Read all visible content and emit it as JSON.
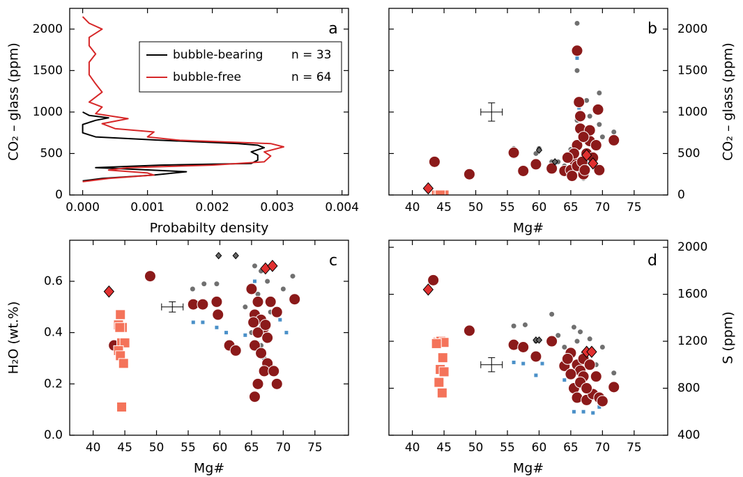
{
  "chart_data": [
    {
      "type": "line",
      "panel_label": "a",
      "xlabel": "Probabilty density",
      "ylabel": "CO₂ – glass (ppm)",
      "yaxis_side": "left",
      "xlim": [
        -0.0002,
        0.0041
      ],
      "xticks": [
        {
          "value": 0,
          "label": "0.000"
        },
        0.001,
        0.002,
        0.003,
        0.004
      ],
      "ylim": [
        0,
        2250
      ],
      "yticks": [
        0,
        500,
        1000,
        1500,
        2000
      ],
      "series": [
        {
          "name": "bubble-bearing",
          "legend_count": "n = 33",
          "color": "#000000",
          "x": [
            0,
            0.0003,
            0.0011,
            0.0016,
            0.0008,
            0.0002,
            0.0012,
            0.0026,
            0.0027,
            0.0027,
            0.0026,
            0.0028,
            0.0027,
            0.0024,
            0.0012,
            0.0002,
            0,
            0,
            0.0002,
            0.0004,
            0.0001,
            0
          ],
          "y": [
            170,
            200,
            240,
            280,
            310,
            330,
            360,
            380,
            420,
            480,
            520,
            570,
            600,
            620,
            660,
            700,
            750,
            850,
            900,
            930,
            960,
            1000
          ]
        },
        {
          "name": "bubble-free",
          "legend_count": "n = 64",
          "color": "#d62728",
          "x": [
            0,
            0.0004,
            0.0011,
            0.001,
            0.0004,
            0.0007,
            0.002,
            0.0028,
            0.0029,
            0.0028,
            0.0031,
            0.0029,
            0.0015,
            0.001,
            0.0011,
            0.0005,
            0.0003,
            0.0007,
            0.0002,
            0.0003,
            0.0001,
            0.0003,
            0.0002,
            0.0001,
            0.0001,
            0.0002,
            0.0001,
            0.0001,
            0.0003,
            0.0001,
            0
          ],
          "y": [
            160,
            200,
            240,
            265,
            300,
            330,
            360,
            400,
            470,
            520,
            580,
            620,
            660,
            700,
            760,
            800,
            860,
            920,
            980,
            1060,
            1120,
            1240,
            1340,
            1450,
            1600,
            1700,
            1800,
            1900,
            2000,
            2070,
            2150
          ]
        }
      ]
    },
    {
      "type": "scatter",
      "panel_label": "b",
      "xlabel": "Mg#",
      "ylabel": "CO₂ – glass (ppm)",
      "yaxis_side": "right",
      "xlim": [
        36.3,
        80.3
      ],
      "xticks": [
        40,
        45,
        50,
        55,
        60,
        65,
        70,
        75
      ],
      "ylim": [
        0,
        2250
      ],
      "yticks": [
        0,
        500,
        1000,
        1500,
        2000
      ],
      "error_bar": {
        "x": 52.5,
        "y": 1000,
        "xerr": 1.7,
        "yerr": 110
      },
      "series": [
        {
          "marker": "dot",
          "color": "#707070",
          "x": [
            66,
            66,
            69.5,
            67.5,
            69.5,
            71.8,
            60,
            56,
            59.5,
            63,
            65,
            66,
            68,
            70,
            64,
            67,
            62
          ],
          "y": [
            2070,
            1500,
            1230,
            1140,
            850,
            760,
            560,
            560,
            500,
            400,
            550,
            900,
            950,
            700,
            350,
            200,
            400
          ]
        },
        {
          "marker": "small-square",
          "color": "#4a90c8",
          "x": [
            66,
            66.3,
            69.2,
            66.7,
            56,
            59.5,
            57.5,
            62.5,
            68,
            65
          ],
          "y": [
            1650,
            1050,
            1000,
            780,
            460,
            340,
            280,
            380,
            400,
            250
          ]
        },
        {
          "marker": "circle",
          "color": "#8b1a1a",
          "x": [
            43.5,
            49,
            56,
            57.5,
            59.5,
            62,
            64,
            65,
            65.5,
            66,
            66.3,
            66.5,
            66,
            65.5,
            66,
            67,
            67.5,
            68,
            68,
            69.3,
            69,
            69.5,
            71.8,
            64.5,
            66.8,
            67.2,
            65.2,
            68.5,
            66.5,
            67
          ],
          "y": [
            400,
            250,
            510,
            290,
            370,
            320,
            290,
            300,
            420,
            1740,
            1120,
            800,
            600,
            500,
            350,
            250,
            500,
            650,
            780,
            1030,
            600,
            300,
            660,
            450,
            400,
            300,
            230,
            450,
            950,
            700
          ]
        },
        {
          "marker": "square",
          "color": "#f4735a",
          "x": [
            43.8,
            44.2,
            44.6,
            45,
            44.4
          ],
          "y": [
            0,
            0,
            0,
            0,
            0
          ]
        },
        {
          "marker": "diamond",
          "color": "#e03030",
          "x": [
            42.5,
            67.5,
            68.5
          ],
          "y": [
            80,
            480,
            380
          ]
        },
        {
          "marker": "small-diamond",
          "color": "#666666",
          "x": [
            60,
            62.5
          ],
          "y": [
            540,
            400
          ]
        }
      ]
    },
    {
      "type": "scatter",
      "panel_label": "c",
      "xlabel": "Mg#",
      "ylabel": "H₂O (wt.%)",
      "yaxis_side": "left",
      "xlim": [
        36.3,
        80.3
      ],
      "xticks": [
        40,
        45,
        50,
        55,
        60,
        65,
        70,
        75
      ],
      "ylim": [
        0,
        0.76
      ],
      "yticks": [
        {
          "value": 0,
          "label": "0.0"
        },
        0.2,
        0.4,
        0.6
      ],
      "error_bar": {
        "x": 52.5,
        "y": 0.5,
        "xerr": 1.7,
        "yerr": 0.02
      },
      "series": [
        {
          "marker": "dot",
          "color": "#707070",
          "x": [
            55.7,
            57.5,
            59.5,
            65.5,
            66.5,
            67.5,
            70,
            71.5,
            64,
            66,
            68,
            65,
            66.5,
            67
          ],
          "y": [
            0.57,
            0.59,
            0.59,
            0.66,
            0.64,
            0.6,
            0.57,
            0.62,
            0.5,
            0.55,
            0.48,
            0.4,
            0.35,
            0.3
          ]
        },
        {
          "marker": "small-square",
          "color": "#4a90c8",
          "x": [
            55.8,
            57.3,
            59.5,
            61,
            64,
            65.5,
            66,
            67,
            69.5,
            70.5,
            62.5
          ],
          "y": [
            0.44,
            0.44,
            0.42,
            0.4,
            0.39,
            0.6,
            0.36,
            0.29,
            0.45,
            0.4,
            0.34
          ]
        },
        {
          "marker": "circle",
          "color": "#8b1a1a",
          "x": [
            43.3,
            49,
            55.8,
            57.3,
            59.5,
            59.7,
            61.5,
            62.5,
            65,
            66,
            65.5,
            66.5,
            67,
            66,
            67.5,
            65.5,
            66.5,
            67.5,
            67,
            66,
            65.5,
            68,
            69,
            69,
            71.8,
            68.5,
            67.2,
            65.3
          ],
          "y": [
            0.35,
            0.62,
            0.51,
            0.51,
            0.52,
            0.47,
            0.35,
            0.33,
            0.57,
            0.52,
            0.47,
            0.45,
            0.42,
            0.4,
            0.38,
            0.35,
            0.32,
            0.28,
            0.25,
            0.2,
            0.15,
            0.52,
            0.48,
            0.2,
            0.53,
            0.25,
            0.43,
            0.44
          ]
        },
        {
          "marker": "square",
          "color": "#f4735a",
          "x": [
            44.3,
            44,
            44.6,
            44.5,
            45,
            44,
            44.3,
            44.8,
            44.5,
            44.2
          ],
          "y": [
            0.47,
            0.43,
            0.42,
            0.36,
            0.36,
            0.33,
            0.31,
            0.28,
            0.11,
            0.42
          ]
        },
        {
          "marker": "diamond",
          "color": "#e03030",
          "x": [
            42.5,
            67.2,
            68.3
          ],
          "y": [
            0.56,
            0.65,
            0.66
          ]
        },
        {
          "marker": "small-diamond",
          "color": "#666666",
          "x": [
            59.8,
            62.5
          ],
          "y": [
            0.7,
            0.7
          ]
        }
      ]
    },
    {
      "type": "scatter",
      "panel_label": "d",
      "xlabel": "Mg#",
      "ylabel": "S (ppm)",
      "yaxis_side": "right",
      "xlim": [
        36.3,
        80.3
      ],
      "xticks": [
        40,
        45,
        50,
        55,
        60,
        65,
        70,
        75
      ],
      "ylim": [
        400,
        2060
      ],
      "yticks": [
        400,
        800,
        1200,
        1600,
        2000
      ],
      "error_bar": {
        "x": 52.5,
        "y": 1000,
        "xerr": 1.7,
        "yerr": 60
      },
      "series": [
        {
          "marker": "dot",
          "color": "#707070",
          "x": [
            56,
            57.8,
            59.5,
            62,
            65.5,
            66.5,
            68,
            70,
            71.8,
            64,
            67,
            69,
            63,
            66
          ],
          "y": [
            1330,
            1340,
            1200,
            1430,
            1320,
            1280,
            1220,
            1150,
            930,
            1150,
            1100,
            1000,
            1250,
            1200
          ]
        },
        {
          "marker": "small-square",
          "color": "#4a90c8",
          "x": [
            56,
            57.5,
            59.5,
            60.5,
            64,
            65.5,
            67,
            68.5,
            69.5,
            70.5,
            66
          ],
          "y": [
            1020,
            1010,
            910,
            1010,
            870,
            600,
            600,
            590,
            640,
            680,
            690
          ]
        },
        {
          "marker": "circle",
          "color": "#8b1a1a",
          "x": [
            43.3,
            49,
            56,
            57.5,
            59.5,
            62,
            64,
            65,
            66,
            66.5,
            67,
            65.5,
            66,
            67.5,
            68.5,
            69.5,
            70,
            71.8,
            67,
            68,
            65,
            66.5,
            67.5,
            64.5,
            69
          ],
          "y": [
            1720,
            1290,
            1170,
            1150,
            1070,
            1200,
            990,
            1100,
            1000,
            950,
            900,
            800,
            720,
            700,
            750,
            720,
            690,
            810,
            1050,
            1000,
            920,
            850,
            800,
            1050,
            900
          ]
        },
        {
          "marker": "square",
          "color": "#f4735a",
          "x": [
            44,
            44.5,
            45,
            44.8,
            44.4,
            45,
            44.2,
            44.7,
            43.8
          ],
          "y": [
            1190,
            1200,
            1190,
            1060,
            960,
            940,
            850,
            760,
            1180
          ]
        },
        {
          "marker": "diamond",
          "color": "#e03030",
          "x": [
            42.5,
            67.5,
            68.3
          ],
          "y": [
            1640,
            1110,
            1110
          ]
        },
        {
          "marker": "small-diamond",
          "color": "#666666",
          "x": [
            59.5,
            60
          ],
          "y": [
            1210,
            1210
          ]
        }
      ]
    }
  ]
}
